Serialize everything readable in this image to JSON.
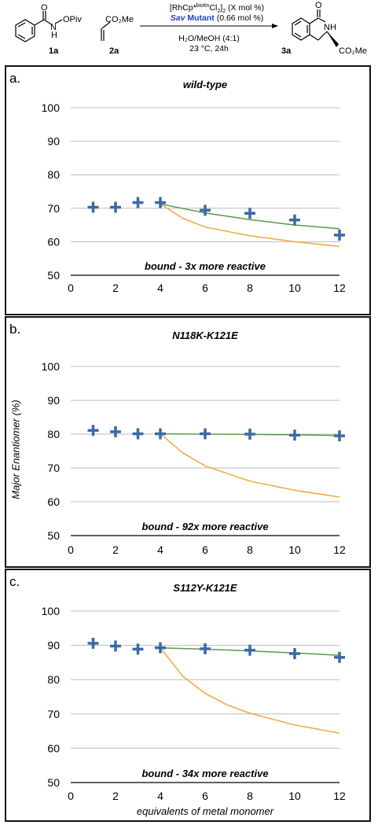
{
  "scheme": {
    "reactant1_label": "1a",
    "reactant1_substituent": "OPiv",
    "reactant1_atom_o": "O",
    "reactant1_atom_nh": "H",
    "reactant1_atom_n": "N",
    "reactant2_label": "2a",
    "reactant2_substituent": "CO₂Me",
    "catalyst_line": "[RhCp*biotinCl2]2 (X mol %)",
    "catalyst_base": "[RhCp*",
    "catalyst_sup": "biotin",
    "catalyst_mid": "Cl",
    "catalyst_sub1": "2",
    "catalyst_close": "]",
    "catalyst_sub2": "2",
    "catalyst_tail": " (X mol %)",
    "sav_italic": "Sav",
    "sav_bold": " Mutant",
    "sav_tail": " (0.66 mol %)",
    "solvent": "H₂O/MeOH (4:1)",
    "conditions": "23 °C, 24h",
    "product_label": "3a",
    "product_atom_o": "O",
    "product_atom_nh": "NH",
    "product_substituent": "CO₂Me"
  },
  "colors": {
    "marker": "#3a6aa6",
    "fit_green": "#5a9a4a",
    "fit_orange": "#f0a83c",
    "sav_blue": "#1f3fc0",
    "grid": "#bbbbbb"
  },
  "y_axis_label": "Major Enantiomer (%)",
  "x_axis_label": "equivalents of metal monomer",
  "chart_data": [
    {
      "type": "scatter",
      "panel_letter": "a.",
      "title": "wild-type",
      "annotation": "bound - 3x more reactive",
      "xlim": [
        0,
        12
      ],
      "ylim": [
        50,
        100
      ],
      "x_ticks": [
        0,
        2,
        4,
        6,
        8,
        10,
        12
      ],
      "y_ticks": [
        50,
        60,
        70,
        80,
        90,
        100
      ],
      "grid": true,
      "points": {
        "x": [
          1,
          2,
          3,
          4,
          6,
          8,
          10,
          12
        ],
        "y": [
          70.3,
          70.3,
          71.7,
          71.7,
          69.4,
          68.5,
          66.5,
          62.0
        ]
      },
      "fit_green": {
        "x": [
          4,
          6,
          8,
          10,
          12
        ],
        "y": [
          71.3,
          68.6,
          66.6,
          65.0,
          63.9
        ]
      },
      "fit_orange": {
        "x": [
          4,
          5,
          6,
          8,
          10,
          12
        ],
        "y": [
          71.3,
          67.0,
          64.4,
          61.8,
          60.0,
          58.6
        ]
      }
    },
    {
      "type": "scatter",
      "panel_letter": "b.",
      "title": "N118K-K121E",
      "annotation": "bound - 92x more reactive",
      "xlim": [
        0,
        12
      ],
      "ylim": [
        50,
        100
      ],
      "x_ticks": [
        0,
        2,
        4,
        6,
        8,
        10,
        12
      ],
      "y_ticks": [
        50,
        60,
        70,
        80,
        90,
        100
      ],
      "grid": true,
      "points": {
        "x": [
          1,
          2,
          3,
          4,
          6,
          8,
          10,
          12
        ],
        "y": [
          81.1,
          80.7,
          80.1,
          80.1,
          80.1,
          80.0,
          79.7,
          79.5
        ]
      },
      "fit_green": {
        "x": [
          4,
          6,
          8,
          10,
          12
        ],
        "y": [
          80.1,
          80.0,
          79.9,
          79.8,
          79.6
        ]
      },
      "fit_orange": {
        "x": [
          4,
          5,
          6,
          8,
          10,
          12
        ],
        "y": [
          80.1,
          74.5,
          70.6,
          66.1,
          63.4,
          61.4
        ]
      }
    },
    {
      "type": "scatter",
      "panel_letter": "c.",
      "title": "S112Y-K121E",
      "annotation": "bound - 34x more reactive",
      "xlim": [
        0,
        12
      ],
      "ylim": [
        50,
        100
      ],
      "x_ticks": [
        0,
        2,
        4,
        6,
        8,
        10,
        12
      ],
      "y_ticks": [
        50,
        60,
        70,
        80,
        90,
        100
      ],
      "grid": true,
      "points": {
        "x": [
          1,
          2,
          3,
          4,
          6,
          8,
          10,
          12
        ],
        "y": [
          90.6,
          89.8,
          88.9,
          89.3,
          89.0,
          88.6,
          87.6,
          86.5
        ]
      },
      "fit_green": {
        "x": [
          4,
          6,
          8,
          10,
          12
        ],
        "y": [
          89.3,
          88.9,
          88.4,
          87.8,
          87.1
        ]
      },
      "fit_orange": {
        "x": [
          4,
          5,
          6,
          7,
          8,
          10,
          12
        ],
        "y": [
          89.3,
          81.0,
          76.0,
          72.6,
          70.2,
          66.8,
          64.4
        ]
      }
    }
  ]
}
